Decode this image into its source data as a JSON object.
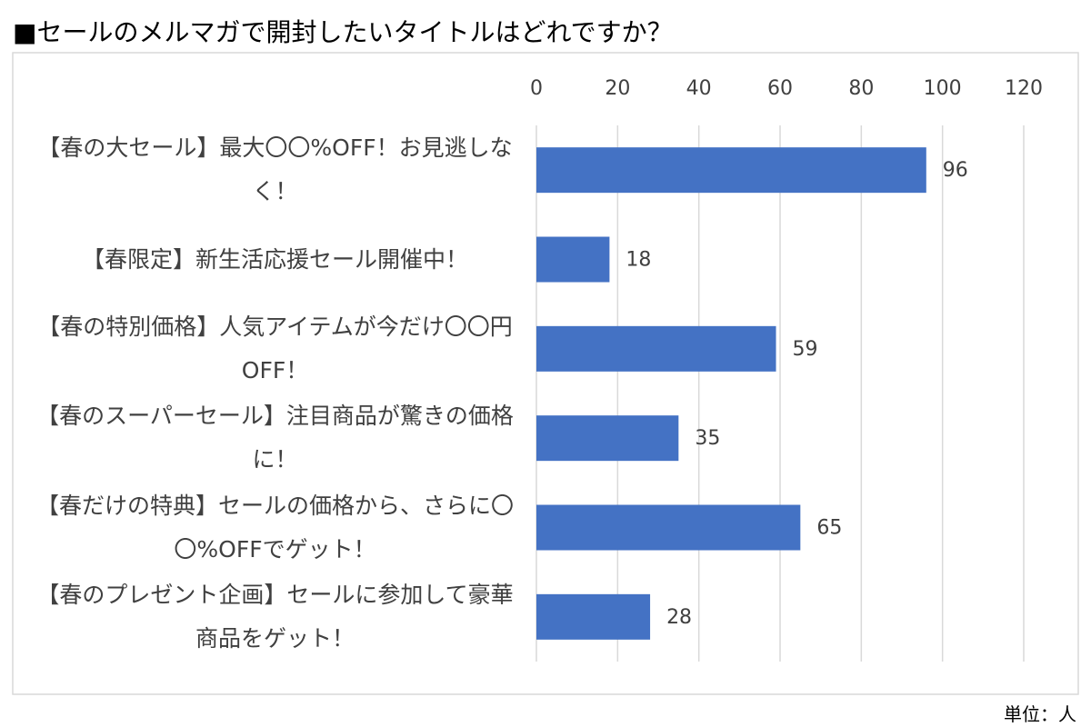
{
  "chart_data": {
    "type": "barh",
    "title": "■セールのメルマガで開封したいタイトルはどれですか？",
    "unit_note": "単位：人",
    "categories": [
      "【春の大セール】最大〇〇%OFF！お見逃しなく！",
      "【春限定】新生活応援セール開催中！",
      "【春の特別価格】人気アイテムが今だけ〇〇円OFF！",
      "【春のスーパーセール】注目商品が驚きの価格に！",
      "【春だけの特典】セールの価格から、さらに〇〇%OFFでゲット！",
      "【春のプレゼント企画】セールに参加して豪華商品をゲット！"
    ],
    "values": [
      96,
      18,
      59,
      35,
      65,
      28
    ],
    "color": "#4472c4",
    "xlim": [
      0,
      120
    ],
    "xticks": [
      0,
      20,
      40,
      60,
      80,
      100,
      120
    ],
    "grid": true
  }
}
